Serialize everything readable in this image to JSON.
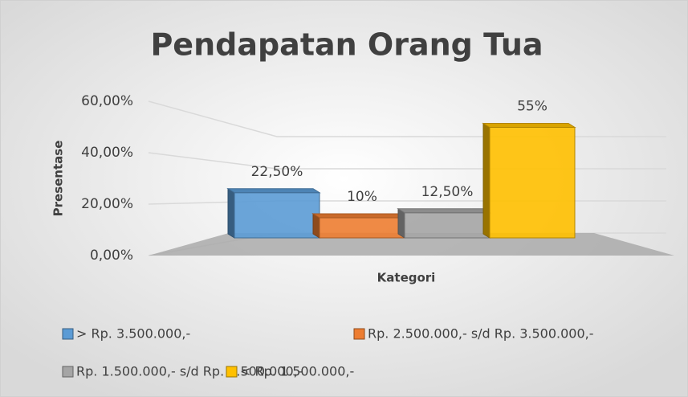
{
  "chart_data": {
    "type": "bar3d",
    "title": "Pendapatan Orang Tua",
    "x_label": "Kategori",
    "y_label": "Presentase",
    "ylim": [
      0,
      60
    ],
    "yticks": [
      {
        "value": 0,
        "label": "0,00%"
      },
      {
        "value": 20,
        "label": "20,00%"
      },
      {
        "value": 40,
        "label": "40,00%"
      },
      {
        "value": 60,
        "label": "60,00%"
      }
    ],
    "grid": true,
    "legend": "bottom",
    "series": [
      {
        "name": "> Rp. 3.500.000,-",
        "color": "#5b9bd5",
        "values": [
          22.5
        ],
        "value_labels": [
          "22,50%"
        ]
      },
      {
        "name": "Rp. 2.500.000,- s/d Rp. 3.500.000,-",
        "color": "#ed7d31",
        "values": [
          10
        ],
        "value_labels": [
          "10%"
        ]
      },
      {
        "name": "Rp. 1.500.000,- s/d Rp. 2.500.000,-",
        "color": "#a5a5a5",
        "values": [
          12.5
        ],
        "value_labels": [
          "12,50%"
        ]
      },
      {
        "name": "< Rp. 1.500.000,-",
        "color": "#ffc000",
        "values": [
          55
        ],
        "value_labels": [
          "55%"
        ]
      }
    ]
  }
}
